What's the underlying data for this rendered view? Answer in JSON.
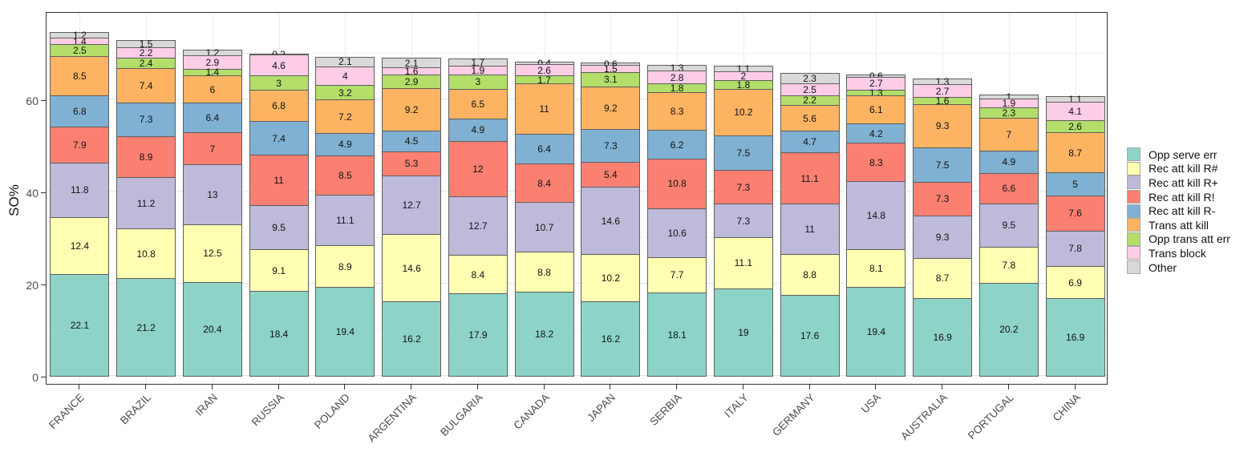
{
  "chart_data": {
    "type": "bar",
    "stacked": true,
    "title": "",
    "xlabel": "",
    "ylabel": "SO%",
    "ylim": [
      0,
      79
    ],
    "yticks": [
      0,
      20,
      40,
      60
    ],
    "minor_gridlines": [
      10,
      30,
      50,
      70
    ],
    "grid": true,
    "legend_position": "right",
    "categories": [
      "FRANCE",
      "BRAZIL",
      "IRAN",
      "RUSSIA",
      "POLAND",
      "ARGENTINA",
      "BULGARIA",
      "CANADA",
      "JAPAN",
      "SERBIA",
      "ITALY",
      "GERMANY",
      "USA",
      "AUSTRALIA",
      "PORTUGAL",
      "CHINA"
    ],
    "stacking_note": "series listed bottom-to-top of each bar; legend shows same order top-to-bottom",
    "series": [
      {
        "name": "Opp serve err",
        "color": "#8DD3C7",
        "values": [
          22.1,
          21.2,
          20.4,
          18.4,
          19.4,
          16.2,
          17.9,
          18.2,
          16.2,
          18.1,
          19,
          17.6,
          19.4,
          16.9,
          20.2,
          16.9
        ]
      },
      {
        "name": "Rec att kill R#",
        "color": "#FFFFB3",
        "values": [
          12.4,
          10.8,
          12.5,
          9.1,
          8.9,
          14.6,
          8.4,
          8.8,
          10.2,
          7.7,
          11.1,
          8.8,
          8.1,
          8.7,
          7.8,
          6.9
        ]
      },
      {
        "name": "Rec att kill R+",
        "color": "#BEBADA",
        "values": [
          11.8,
          11.2,
          13,
          9.5,
          11.1,
          12.7,
          12.7,
          10.7,
          14.6,
          10.6,
          7.3,
          11,
          14.8,
          9.3,
          9.5,
          7.8
        ]
      },
      {
        "name": "Rec att kill R!",
        "color": "#FB8072",
        "values": [
          7.9,
          8.9,
          7,
          11,
          8.5,
          5.3,
          12,
          8.4,
          5.4,
          10.8,
          7.3,
          11.1,
          8.3,
          7.3,
          6.6,
          7.6
        ]
      },
      {
        "name": "Rec att kill R-",
        "color": "#80B1D3",
        "values": [
          6.8,
          7.3,
          6.4,
          7.4,
          4.9,
          4.5,
          4.9,
          6.4,
          7.3,
          6.2,
          7.5,
          4.7,
          4.2,
          7.5,
          4.9,
          5
        ]
      },
      {
        "name": "Trans att kill",
        "color": "#FDB462",
        "values": [
          8.5,
          7.4,
          6,
          6.8,
          7.2,
          9.2,
          6.5,
          11,
          9.2,
          8.3,
          10.2,
          5.6,
          6.1,
          9.3,
          7,
          8.7
        ]
      },
      {
        "name": "Opp trans att err",
        "color": "#B3DE69",
        "values": [
          2.5,
          2.4,
          1.4,
          3,
          3.2,
          2.9,
          3,
          1.7,
          3.1,
          1.8,
          1.8,
          2.2,
          1.3,
          1.6,
          2.3,
          2.6
        ]
      },
      {
        "name": "Trans block",
        "color": "#FCCDE5",
        "values": [
          1.4,
          2.2,
          2.9,
          4.6,
          4,
          1.6,
          1.9,
          2.6,
          1.5,
          2.8,
          2,
          2.5,
          2.7,
          2.7,
          1.9,
          4.1
        ]
      },
      {
        "name": "Other",
        "color": "#D9D9D9",
        "values": [
          1.2,
          1.5,
          1.2,
          0.2,
          2.1,
          2.1,
          1.7,
          0.4,
          0.6,
          1.3,
          1.1,
          2.3,
          0.6,
          1.3,
          1,
          1.1
        ]
      }
    ]
  }
}
